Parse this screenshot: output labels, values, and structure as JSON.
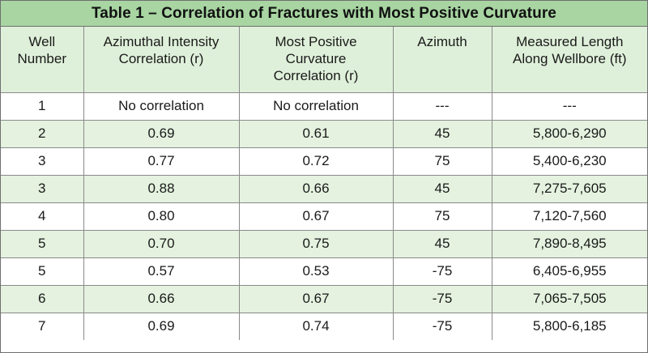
{
  "title": "Table 1 – Correlation of Fractures with Most Positive Curvature",
  "colors": {
    "title_bg": "#a8d5a2",
    "header_bg": "#dff0da",
    "stripe_bg": "#e4f2df",
    "border": "#8a8a8a"
  },
  "headers": [
    [
      "Well",
      "Number"
    ],
    [
      "Azimuthal Intensity",
      "Correlation (r)"
    ],
    [
      "Most Positive",
      "Curvature",
      "Correlation (r)"
    ],
    [
      "Azimuth"
    ],
    [
      "Measured Length",
      "Along Wellbore (ft)"
    ]
  ],
  "rows": [
    [
      "1",
      "No correlation",
      "No correlation",
      "---",
      "---"
    ],
    [
      "2",
      "0.69",
      "0.61",
      "45",
      "5,800-6,290"
    ],
    [
      "3",
      "0.77",
      "0.72",
      "75",
      "5,400-6,230"
    ],
    [
      "3",
      "0.88",
      "0.66",
      "45",
      "7,275-7,605"
    ],
    [
      "4",
      "0.80",
      "0.67",
      "75",
      "7,120-7,560"
    ],
    [
      "5",
      "0.70",
      "0.75",
      "45",
      "7,890-8,495"
    ],
    [
      "5",
      "0.57",
      "0.53",
      "-75",
      "6,405-6,955"
    ],
    [
      "6",
      "0.66",
      "0.67",
      "-75",
      "7,065-7,505"
    ],
    [
      "7",
      "0.69",
      "0.74",
      "-75",
      "5,800-6,185"
    ]
  ]
}
